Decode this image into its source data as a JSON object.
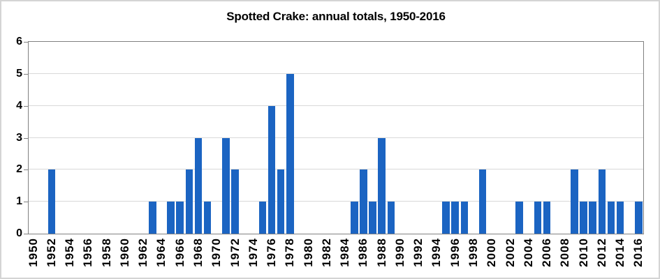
{
  "chart_data": {
    "type": "bar",
    "title": "Spotted Crake: annual totals, 1950-2016",
    "xlabel": "",
    "ylabel": "",
    "categories": [
      1950,
      1951,
      1952,
      1953,
      1954,
      1955,
      1956,
      1957,
      1958,
      1959,
      1960,
      1961,
      1962,
      1963,
      1964,
      1965,
      1966,
      1967,
      1968,
      1969,
      1970,
      1971,
      1972,
      1973,
      1974,
      1975,
      1976,
      1977,
      1978,
      1979,
      1980,
      1981,
      1982,
      1983,
      1984,
      1985,
      1986,
      1987,
      1988,
      1989,
      1990,
      1991,
      1992,
      1993,
      1994,
      1995,
      1996,
      1997,
      1998,
      1999,
      2000,
      2001,
      2002,
      2003,
      2004,
      2005,
      2006,
      2007,
      2008,
      2009,
      2010,
      2011,
      2012,
      2013,
      2014,
      2015,
      2016
    ],
    "values": [
      0,
      0,
      2,
      0,
      0,
      0,
      0,
      0,
      0,
      0,
      0,
      0,
      0,
      1,
      0,
      1,
      1,
      2,
      3,
      1,
      0,
      3,
      2,
      0,
      0,
      1,
      4,
      2,
      5,
      0,
      0,
      0,
      0,
      0,
      0,
      1,
      2,
      1,
      3,
      1,
      0,
      0,
      0,
      0,
      0,
      1,
      1,
      1,
      0,
      2,
      0,
      0,
      0,
      1,
      0,
      1,
      1,
      0,
      0,
      2,
      1,
      1,
      2,
      1,
      1,
      0,
      1
    ],
    "ylim": [
      0,
      6
    ],
    "yticks": [
      0,
      1,
      2,
      3,
      4,
      5,
      6
    ],
    "xtick_labels": [
      "1950",
      "1952",
      "1954",
      "1956",
      "1958",
      "1960",
      "1962",
      "1964",
      "1966",
      "1968",
      "1970",
      "1972",
      "1974",
      "1976",
      "1978",
      "1980",
      "1982",
      "1984",
      "1986",
      "1988",
      "1990",
      "1992",
      "1994",
      "1996",
      "1998",
      "2000",
      "2002",
      "2004",
      "2006",
      "2008",
      "2010",
      "2012",
      "2014",
      "2016"
    ],
    "grid": "horizontal",
    "legend": "none",
    "colors": {
      "bar": "#1b64c2",
      "axis": "#808080",
      "gridline": "#d9d9d9",
      "text": "#000000",
      "frame_border": "#d4d4d4",
      "background": "#ffffff"
    }
  }
}
